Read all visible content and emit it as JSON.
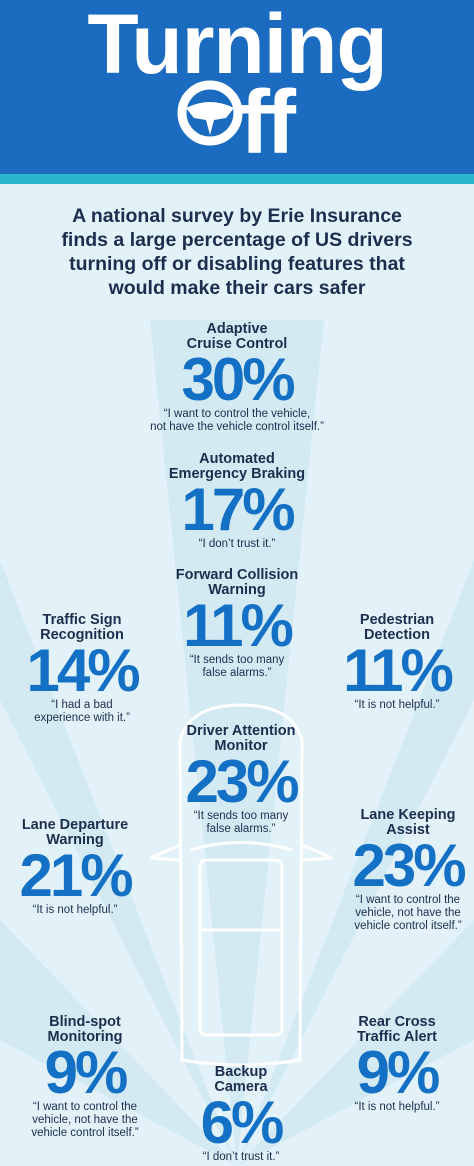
{
  "header": {
    "title_line1": "Turning",
    "title_line2": "ff"
  },
  "intro": [
    "A national survey by Erie Insurance",
    "finds a large percentage of US drivers",
    "turning off or disabling features that",
    "would make their cars safer"
  ],
  "features": [
    {
      "name": [
        "Adaptive",
        "Cruise Control"
      ],
      "percent": "30%",
      "quote": [
        "“I want to control the vehicle,",
        "not have the vehicle control itself.”"
      ]
    },
    {
      "name": [
        "Automated",
        "Emergency Braking"
      ],
      "percent": "17%",
      "quote": [
        "“I don’t trust it.”"
      ]
    },
    {
      "name": [
        "Forward Collision",
        "Warning"
      ],
      "percent": "11%",
      "quote": [
        "“It sends too many",
        "false alarms.”"
      ]
    },
    {
      "name": [
        "Traffic Sign",
        "Recognition"
      ],
      "percent": "14%",
      "quote": [
        "“I had a bad",
        "experience with it.”"
      ]
    },
    {
      "name": [
        "Pedestrian",
        "Detection"
      ],
      "percent": "11%",
      "quote": [
        "“It is not helpful.”"
      ]
    },
    {
      "name": [
        "Driver Attention",
        "Monitor"
      ],
      "percent": "23%",
      "quote": [
        "“It sends too many",
        "false alarms.”"
      ]
    },
    {
      "name": [
        "Lane Departure",
        "Warning"
      ],
      "percent": "21%",
      "quote": [
        "“It is not helpful.”"
      ]
    },
    {
      "name": [
        "Lane Keeping",
        "Assist"
      ],
      "percent": "23%",
      "quote": [
        "“I want to control the",
        "vehicle, not have the",
        "vehicle control itself.”"
      ]
    },
    {
      "name": [
        "Blind-spot",
        "Monitoring"
      ],
      "percent": "9%",
      "quote": [
        "“I want to control the",
        "vehicle, not have the",
        "vehicle control itself.”"
      ]
    },
    {
      "name": [
        "Backup",
        "Camera"
      ],
      "percent": "6%",
      "quote": [
        "“I don’t trust it.”"
      ]
    },
    {
      "name": [
        "Rear Cross",
        "Traffic Alert"
      ],
      "percent": "9%",
      "quote": [
        "“It is not helpful.”"
      ]
    }
  ]
}
